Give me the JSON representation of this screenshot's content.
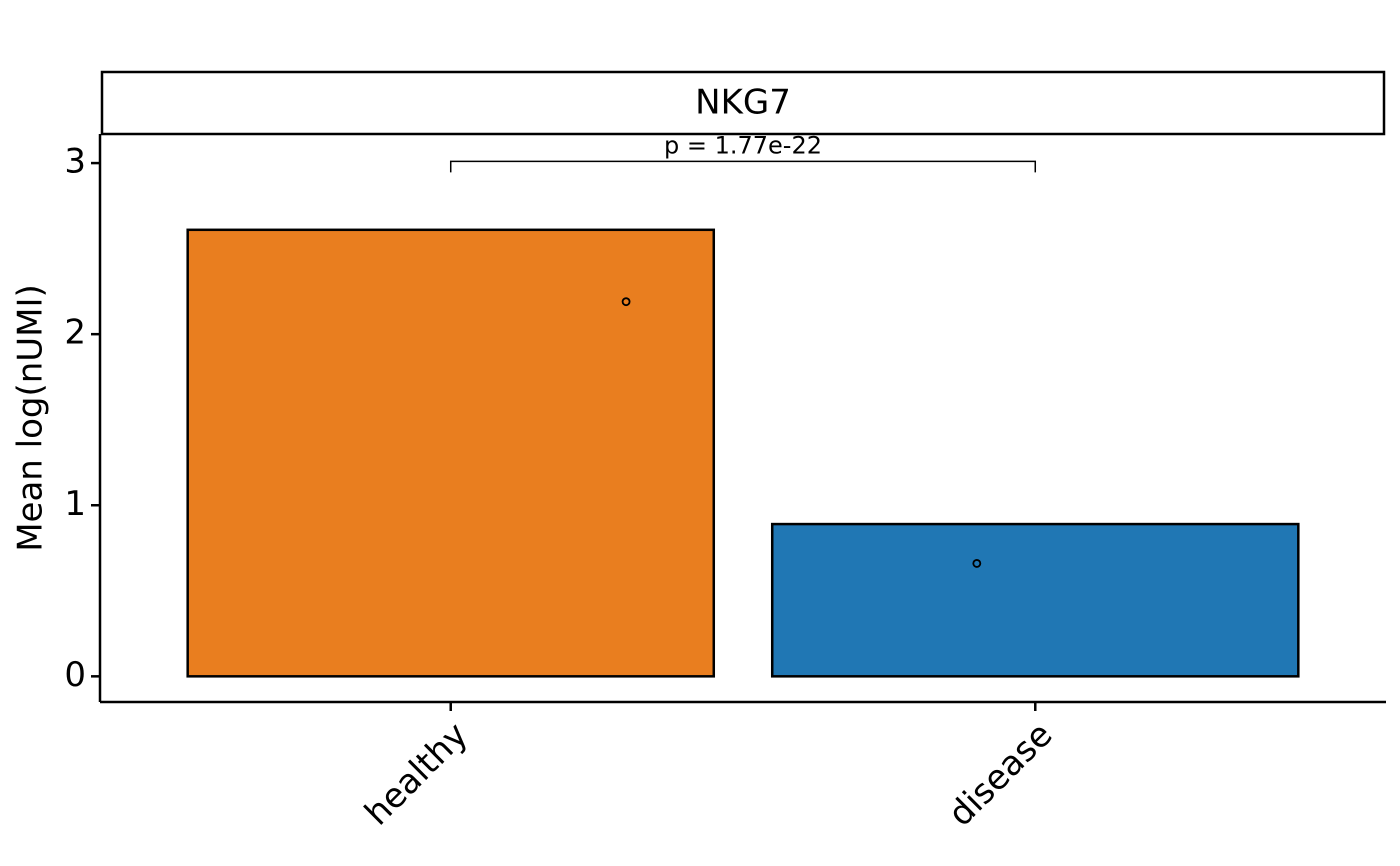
{
  "chart_data": {
    "type": "bar",
    "title": "NKG7",
    "ylabel": "Mean log(nUMI)",
    "categories": [
      "healthy",
      "disease"
    ],
    "values": [
      2.61,
      0.89
    ],
    "colors": [
      "#e97e1f",
      "#2077b4"
    ],
    "points": [
      2.19,
      0.66
    ],
    "annotation": "p = 1.77e-22",
    "bracket_y": 3.01,
    "ylim": [
      -0.15,
      3.17
    ],
    "yticks": [
      0,
      1,
      2,
      3
    ]
  }
}
